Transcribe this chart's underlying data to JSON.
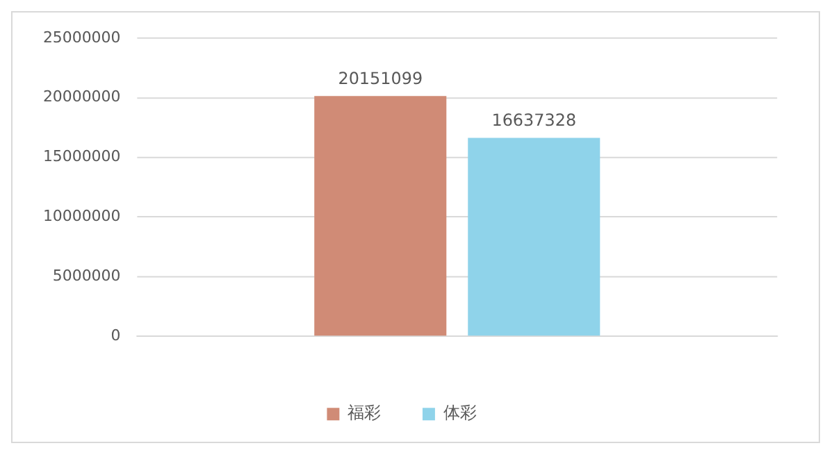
{
  "chart_data": {
    "type": "bar",
    "categories": [
      null
    ],
    "series": [
      {
        "name": "福彩",
        "color": "#d08b76",
        "values": [
          20151099
        ]
      },
      {
        "name": "体彩",
        "color": "#8fd3ea",
        "values": [
          16637328
        ]
      }
    ],
    "ylim": [
      0,
      25000000
    ],
    "yticks": [
      0,
      5000000,
      10000000,
      15000000,
      20000000,
      25000000
    ],
    "grid": "y",
    "legend": "bottom",
    "data_labels": true
  }
}
